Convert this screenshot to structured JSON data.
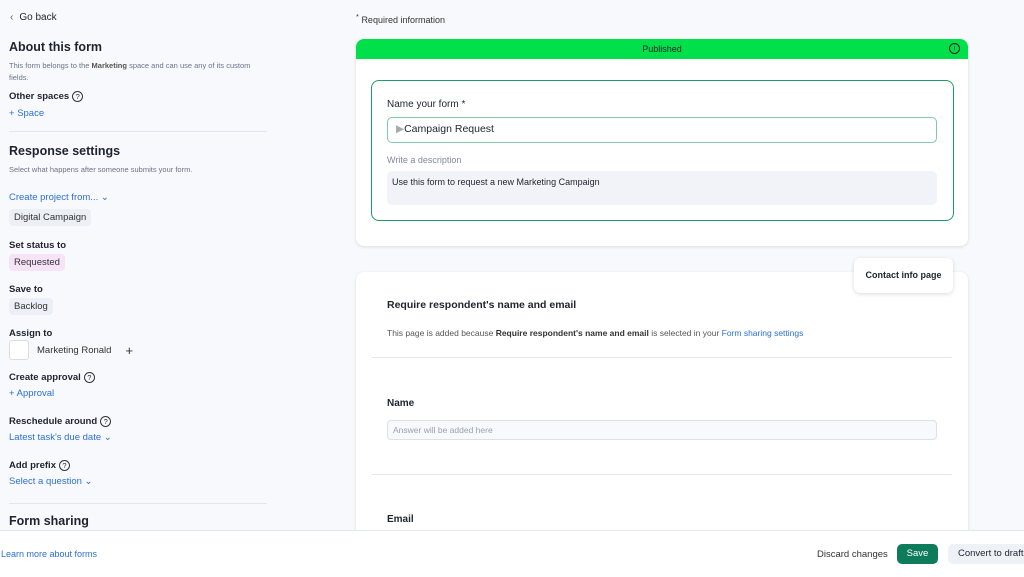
{
  "sidebar": {
    "go_back": "Go back",
    "about_title": "About this form",
    "about_desc_pre": "This form belongs to the ",
    "about_desc_bold": "Marketing",
    "about_desc_post": " space and can use any of its custom fields.",
    "other_spaces": "Other spaces",
    "add_space": "Space",
    "response_title": "Response settings",
    "response_desc": "Select what happens after someone submits your form.",
    "create_project": "Create project from...",
    "template": "Digital Campaign",
    "set_status": "Set status to",
    "status": "Requested",
    "save_to": "Save to",
    "save_to_value": "Backlog",
    "assign_to": "Assign to",
    "assignee": "Marketing Ronald",
    "create_approval": "Create approval",
    "add_approval": "Approval",
    "reschedule": "Reschedule around",
    "reschedule_value": "Latest task's due date",
    "add_prefix": "Add prefix",
    "prefix_value": "Select a question",
    "form_sharing": "Form sharing"
  },
  "main": {
    "required_info": "Required information",
    "banner": "Published",
    "banner_color": "#00e04b",
    "name_label": "Name your form *",
    "name_value": "Campaign Request",
    "desc_label": "Write a description",
    "desc_value": "Use this form to request a new Marketing Campaign",
    "contact_tab": "Contact info page",
    "require_title": "Require respondent's name and email",
    "require_desc_pre": "This page is added because ",
    "require_desc_bold": "Require respondent's name and email",
    "require_desc_mid": " is selected in your ",
    "require_desc_link": "Form sharing settings",
    "name_field": "Name",
    "name_placeholder": "Answer will be added here",
    "email_field": "Email"
  },
  "footer": {
    "learn_more": "Learn more about forms",
    "discard": "Discard changes",
    "save": "Save",
    "convert": "Convert to draft",
    "save_color": "#0e7c5a"
  }
}
